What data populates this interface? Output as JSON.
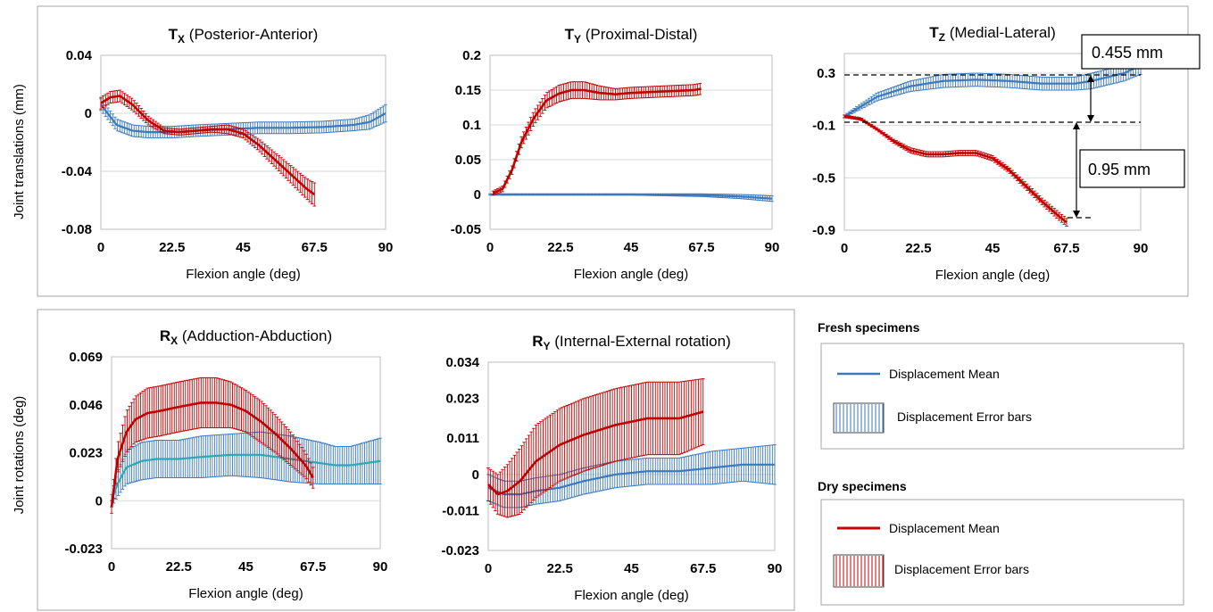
{
  "colors": {
    "fresh": "#3a78bf",
    "fresh_rx_mean": "#2aa7b8",
    "dry": "#c00000",
    "grid": "#d9d9d9",
    "frame": "#a6a6a6"
  },
  "y_labels": {
    "translations": "Joint translations (mm)",
    "rotations": "Joint rotations (deg)"
  },
  "legend": {
    "fresh_heading": "Fresh specimens",
    "dry_heading": "Dry specimens",
    "mean_label": "Displacement Mean",
    "error_label": "Displacement Error bars"
  },
  "annotations": {
    "tz_upper": "0.455 mm",
    "tz_lower": "0.95 mm"
  },
  "chart_data": [
    {
      "id": "tx",
      "type": "line",
      "title_sym": "T",
      "title_sub": "X",
      "title_rest": " (Posterior-Anterior)",
      "xlabel": "Flexion angle (deg)",
      "xticks": [
        "0",
        "22.5",
        "45",
        "67.5",
        "90"
      ],
      "yticks": [
        "0.04",
        "0",
        "-0.04",
        "-0.08"
      ],
      "xlim": [
        0,
        90
      ],
      "ylim": [
        -0.08,
        0.04
      ],
      "grid": "horizontal",
      "series": [
        {
          "group": "fresh",
          "x": [
            0,
            5,
            10,
            15,
            22.5,
            30,
            40,
            50,
            60,
            70,
            80,
            85,
            90
          ],
          "y": [
            0.006,
            -0.008,
            -0.012,
            -0.013,
            -0.013,
            -0.012,
            -0.011,
            -0.01,
            -0.01,
            -0.0095,
            -0.008,
            -0.006,
            0.0
          ],
          "err": [
            0.004,
            0.004,
            0.004,
            0.004,
            0.004,
            0.004,
            0.004,
            0.004,
            0.004,
            0.004,
            0.004,
            0.005,
            0.006
          ]
        },
        {
          "group": "dry",
          "x": [
            0,
            3,
            6,
            10,
            15,
            20,
            25,
            30,
            35,
            40,
            45,
            50,
            55,
            60,
            65,
            67.5
          ],
          "y": [
            0.007,
            0.011,
            0.012,
            0.006,
            -0.005,
            -0.012,
            -0.013,
            -0.012,
            -0.011,
            -0.011,
            -0.014,
            -0.022,
            -0.032,
            -0.042,
            -0.052,
            -0.056
          ],
          "err": [
            0.004,
            0.004,
            0.004,
            0.004,
            0.003,
            0.002,
            0.002,
            0.002,
            0.002,
            0.003,
            0.003,
            0.004,
            0.005,
            0.006,
            0.007,
            0.008
          ]
        }
      ]
    },
    {
      "id": "ty",
      "type": "line",
      "title_sym": "T",
      "title_sub": "Y",
      "title_rest": "  (Proximal-Distal)",
      "xlabel": "Flexion angle (deg)",
      "xticks": [
        "0",
        "22.5",
        "45",
        "67.5",
        "90"
      ],
      "yticks": [
        "0.2",
        "0.15",
        "0.1",
        "0.05",
        "0",
        "-0.05"
      ],
      "xlim": [
        0,
        90
      ],
      "ylim": [
        -0.05,
        0.2
      ],
      "grid": "horizontal",
      "series": [
        {
          "group": "fresh",
          "x": [
            0,
            22.5,
            45,
            67.5,
            80,
            90
          ],
          "y": [
            0.0,
            0.0,
            0.0,
            -0.001,
            -0.003,
            -0.006
          ],
          "err": [
            0.001,
            0.001,
            0.001,
            0.002,
            0.003,
            0.004
          ]
        },
        {
          "group": "dry",
          "x": [
            1,
            4,
            7,
            10,
            14,
            18,
            22,
            26,
            30,
            35,
            40,
            45,
            50,
            55,
            60,
            65,
            67.5
          ],
          "y": [
            0.002,
            0.008,
            0.035,
            0.075,
            0.11,
            0.135,
            0.145,
            0.15,
            0.15,
            0.146,
            0.144,
            0.146,
            0.147,
            0.148,
            0.149,
            0.15,
            0.152
          ],
          "err": [
            0.003,
            0.004,
            0.006,
            0.008,
            0.01,
            0.011,
            0.012,
            0.012,
            0.012,
            0.01,
            0.008,
            0.008,
            0.008,
            0.008,
            0.008,
            0.008,
            0.008
          ]
        }
      ]
    },
    {
      "id": "tz",
      "type": "line",
      "title_sym": "T",
      "title_sub": "Z",
      "title_rest": " (Medial-Lateral)",
      "xlabel": "Flexion angle (deg)",
      "xticks": [
        "0",
        "22.5",
        "45",
        "67.5",
        "90"
      ],
      "yticks": [
        "0.3",
        "-0.1",
        "-0.5",
        "-0.9"
      ],
      "xlim": [
        0,
        90
      ],
      "ylim": [
        -0.9,
        0.45
      ],
      "grid": "horizontal",
      "series": [
        {
          "group": "fresh",
          "x": [
            0,
            10,
            20,
            30,
            40,
            50,
            60,
            70,
            75,
            80,
            85,
            90
          ],
          "y": [
            -0.03,
            0.12,
            0.2,
            0.24,
            0.25,
            0.24,
            0.22,
            0.22,
            0.24,
            0.27,
            0.3,
            0.36
          ],
          "err": [
            0.01,
            0.03,
            0.04,
            0.05,
            0.05,
            0.05,
            0.05,
            0.05,
            0.06,
            0.06,
            0.06,
            0.07
          ]
        },
        {
          "group": "dry",
          "x": [
            0,
            5,
            10,
            15,
            20,
            25,
            30,
            35,
            40,
            45,
            50,
            55,
            60,
            65,
            67.5
          ],
          "y": [
            -0.03,
            -0.05,
            -0.13,
            -0.22,
            -0.29,
            -0.32,
            -0.32,
            -0.31,
            -0.31,
            -0.35,
            -0.44,
            -0.56,
            -0.68,
            -0.79,
            -0.84
          ],
          "err": [
            0.01,
            0.01,
            0.01,
            0.015,
            0.02,
            0.02,
            0.02,
            0.02,
            0.02,
            0.02,
            0.02,
            0.025,
            0.025,
            0.03,
            0.03
          ]
        }
      ]
    },
    {
      "id": "rx",
      "type": "line",
      "title_sym": "R",
      "title_sub": "X",
      "title_rest": " (Adduction-Abduction)",
      "xlabel": "Flexion angle (deg)",
      "xticks": [
        "0",
        "22.5",
        "45",
        "67.5",
        "90"
      ],
      "yticks": [
        "0.069",
        "0.046",
        "0.023",
        "0",
        "-0.023"
      ],
      "xlim": [
        0,
        90
      ],
      "ylim": [
        -0.023,
        0.069
      ],
      "grid": "none",
      "series": [
        {
          "group": "fresh",
          "x": [
            0,
            2,
            5,
            10,
            15,
            22.5,
            30,
            40,
            50,
            60,
            70,
            75,
            80,
            85,
            90
          ],
          "y": [
            0.0,
            0.008,
            0.016,
            0.019,
            0.02,
            0.02,
            0.021,
            0.022,
            0.022,
            0.02,
            0.018,
            0.017,
            0.017,
            0.018,
            0.019
          ],
          "err": [
            0.003,
            0.006,
            0.008,
            0.009,
            0.009,
            0.009,
            0.01,
            0.01,
            0.011,
            0.011,
            0.01,
            0.009,
            0.009,
            0.01,
            0.011
          ]
        },
        {
          "group": "dry",
          "x": [
            0,
            2,
            5,
            8,
            12,
            16,
            22.5,
            30,
            35,
            40,
            45,
            50,
            55,
            60,
            65,
            67.5
          ],
          "y": [
            -0.003,
            0.02,
            0.033,
            0.039,
            0.042,
            0.043,
            0.045,
            0.047,
            0.047,
            0.046,
            0.043,
            0.038,
            0.032,
            0.025,
            0.017,
            0.011
          ],
          "err": [
            0.003,
            0.007,
            0.01,
            0.011,
            0.012,
            0.012,
            0.012,
            0.012,
            0.012,
            0.011,
            0.01,
            0.01,
            0.009,
            0.008,
            0.006,
            0.005
          ]
        }
      ]
    },
    {
      "id": "ry",
      "type": "line",
      "title_sym": "R",
      "title_sub": "Y",
      "title_rest": " (Internal-External rotation)",
      "xlabel": "Flexion angle (deg)",
      "xticks": [
        "0",
        "22.5",
        "45",
        "67.5",
        "90"
      ],
      "yticks": [
        "0.034",
        "0.023",
        "0.011",
        "0",
        "-0.011",
        "-0.023"
      ],
      "xlim": [
        0,
        90
      ],
      "ylim": [
        -0.023,
        0.034
      ],
      "grid": "none",
      "series": [
        {
          "group": "fresh",
          "x": [
            0,
            5,
            10,
            15,
            22.5,
            30,
            40,
            50,
            60,
            70,
            80,
            90
          ],
          "y": [
            -0.004,
            -0.006,
            -0.006,
            -0.005,
            -0.004,
            -0.002,
            0.0,
            0.001,
            0.001,
            0.002,
            0.003,
            0.003
          ],
          "err": [
            0.004,
            0.004,
            0.004,
            0.004,
            0.004,
            0.004,
            0.004,
            0.004,
            0.004,
            0.005,
            0.005,
            0.006
          ]
        },
        {
          "group": "dry",
          "x": [
            0,
            3,
            6,
            10,
            15,
            22.5,
            30,
            40,
            50,
            55,
            60,
            67.5
          ],
          "y": [
            -0.003,
            -0.006,
            -0.005,
            -0.002,
            0.004,
            0.009,
            0.012,
            0.015,
            0.017,
            0.017,
            0.017,
            0.019
          ],
          "err": [
            0.005,
            0.006,
            0.008,
            0.01,
            0.011,
            0.011,
            0.011,
            0.011,
            0.011,
            0.011,
            0.011,
            0.01
          ]
        }
      ]
    }
  ]
}
